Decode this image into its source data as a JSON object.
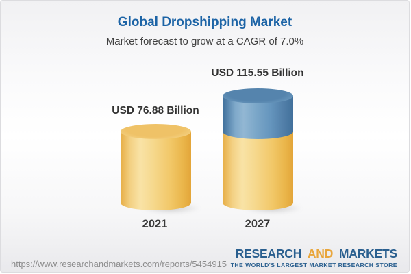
{
  "header": {
    "title": "Global Dropshipping Market",
    "subtitle": "Market forecast to grow at a CAGR of 7.0%"
  },
  "chart_data": {
    "type": "bar",
    "title": "Global Dropshipping Market",
    "subtitle": "Market forecast to grow at a CAGR of 7.0%",
    "unit": "USD Billion",
    "cagr_percent": 7.0,
    "categories": [
      "2021",
      "2027"
    ],
    "values": [
      76.88,
      115.55
    ],
    "bars": [
      {
        "year": "2021",
        "value": 76.88,
        "label": "USD 76.88 Billion",
        "color": "#f0c164"
      },
      {
        "year": "2027",
        "value": 115.55,
        "label": "USD 115.55 Billion",
        "base_color": "#f0c164",
        "growth_color": "#5584ad"
      }
    ],
    "legend": "none",
    "grid": false,
    "colors": {
      "yellow_body": "#f2c869",
      "yellow_cap": "#efc267",
      "blue_body": "#6595bd",
      "blue_cap": "#5584ad",
      "title_blue": "#1d64a6",
      "text_dark": "#3a3a3a"
    }
  },
  "footer": {
    "url": "https://www.researchandmarkets.com/reports/5454915",
    "logo": {
      "research": "RESEARCH",
      "and": "AND",
      "markets": "MARKETS",
      "tagline": "THE WORLD'S LARGEST MARKET RESEARCH STORE",
      "blue": "#2a5f8f",
      "gold": "#e9a63c"
    }
  }
}
